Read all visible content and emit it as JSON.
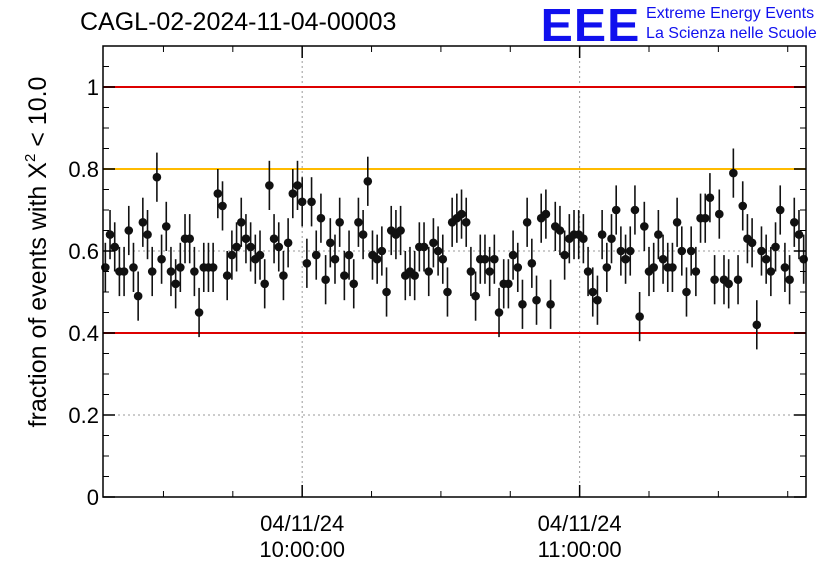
{
  "header": {
    "title": "CAGL-02-2024-11-04-00003",
    "logo_mark": "EEE",
    "logo_line1": "Extreme Energy Events",
    "logo_line2": "La Scienza nelle Scuole"
  },
  "colors": {
    "upper_limit": "#dd0000",
    "lower_limit": "#dd0000",
    "target": "#ffbb00",
    "points": "#111111",
    "logo": "#1010ee"
  },
  "chart_data": {
    "type": "scatter",
    "title": "CAGL-02-2024-11-04-00003",
    "ylabel": "fraction of events with X² < 10.0",
    "ylabel_main": "fraction of events with X",
    "ylabel_sup": "2",
    "ylabel_tail": " < 10.0",
    "xlabel": "",
    "ylim": [
      0,
      1.1
    ],
    "xlim": [
      0,
      150
    ],
    "yticks": [
      0,
      0.2,
      0.4,
      0.6,
      0.8,
      1
    ],
    "ytick_labels": [
      "0",
      "0.2",
      "0.4",
      "0.6",
      "0.8",
      "1"
    ],
    "xticks": [
      {
        "x": 42.5,
        "date": "04/11/24",
        "time": "10:00:00"
      },
      {
        "x": 101.7,
        "date": "04/11/24",
        "time": "11:00:00"
      }
    ],
    "grid": "dotted",
    "reference_lines": [
      {
        "y": 1.0,
        "color": "#dd0000"
      },
      {
        "y": 0.8,
        "color": "#ffbb00"
      },
      {
        "y": 0.4,
        "color": "#dd0000"
      }
    ],
    "error": 0.06,
    "x": [
      0.5,
      1.5,
      2.5,
      3.5,
      4.5,
      5.5,
      6.5,
      7.5,
      8.5,
      9.5,
      10.5,
      11.5,
      12.5,
      13.5,
      14.5,
      15.5,
      16.5,
      17.5,
      18.5,
      19.5,
      20.5,
      21.5,
      22.5,
      23.5,
      24.5,
      25.5,
      26.5,
      27.5,
      28.5,
      29.5,
      30.5,
      31.5,
      32.5,
      33.5,
      34.5,
      35.5,
      36.5,
      37.5,
      38.5,
      39.5,
      40.5,
      41.5,
      42.5,
      43.5,
      44.5,
      45.5,
      46.5,
      47.5,
      48.5,
      49.5,
      50.5,
      51.5,
      52.5,
      53.5,
      54.5,
      55.5,
      56.5,
      57.5,
      58.5,
      59.5,
      60.5,
      61.5,
      62.5,
      63.5,
      64.5,
      65.5,
      66.5,
      67.5,
      68.5,
      69.5,
      70.5,
      71.5,
      72.5,
      73.5,
      74.5,
      75.5,
      76.5,
      77.5,
      78.5,
      79.5,
      80.5,
      81.5,
      82.5,
      83.5,
      84.5,
      85.5,
      86.5,
      87.5,
      88.5,
      89.5,
      90.5,
      91.5,
      92.5,
      93.5,
      94.5,
      95.5,
      96.5,
      97.5,
      98.5,
      99.5,
      100.5,
      101.5,
      102.5,
      103.5,
      104.5,
      105.5,
      106.5,
      107.5,
      108.5,
      109.5,
      110.5,
      111.5,
      112.5,
      113.5,
      114.5,
      115.5,
      116.5,
      117.5,
      118.5,
      119.5,
      120.5,
      121.5,
      122.5,
      123.5,
      124.5,
      125.5,
      126.5,
      127.5,
      128.5,
      129.5,
      130.5,
      131.5,
      132.5,
      133.5,
      134.5,
      135.5,
      136.5,
      137.5,
      138.5,
      139.5,
      140.5,
      141.5,
      142.5,
      143.5,
      144.5,
      145.5,
      146.5,
      147.5,
      148.5,
      149.5
    ],
    "values": [
      0.56,
      0.64,
      0.61,
      0.55,
      0.55,
      0.65,
      0.56,
      0.49,
      0.67,
      0.64,
      0.55,
      0.78,
      0.58,
      0.66,
      0.55,
      0.52,
      0.56,
      0.63,
      0.63,
      0.55,
      0.45,
      0.56,
      0.56,
      0.56,
      0.74,
      0.71,
      0.54,
      0.59,
      0.61,
      0.67,
      0.63,
      0.61,
      0.58,
      0.59,
      0.52,
      0.76,
      0.63,
      0.61,
      0.54,
      0.62,
      0.74,
      0.76,
      0.72,
      0.57,
      0.72,
      0.59,
      0.68,
      0.53,
      0.62,
      0.58,
      0.67,
      0.54,
      0.59,
      0.52,
      0.67,
      0.64,
      0.77,
      0.59,
      0.58,
      0.6,
      0.5,
      0.65,
      0.64,
      0.65,
      0.54,
      0.55,
      0.54,
      0.61,
      0.61,
      0.55,
      0.62,
      0.6,
      0.58,
      0.5,
      0.67,
      0.68,
      0.69,
      0.67,
      0.55,
      0.49,
      0.58,
      0.58,
      0.55,
      0.58,
      0.45,
      0.52,
      0.52,
      0.59,
      0.56,
      0.47,
      0.67,
      0.57,
      0.48,
      0.68,
      0.69,
      0.47,
      0.66,
      0.65,
      0.59,
      0.63,
      0.64,
      0.64,
      0.63,
      0.55,
      0.5,
      0.48,
      0.64,
      0.56,
      0.63,
      0.7,
      0.6,
      0.58,
      0.6,
      0.7,
      0.44,
      0.66,
      0.55,
      0.56,
      0.64,
      0.58,
      0.56,
      0.56,
      0.67,
      0.6,
      0.5,
      0.6,
      0.55,
      0.68,
      0.68,
      0.73,
      0.53,
      0.69,
      0.53,
      0.52,
      0.79,
      0.53,
      0.71,
      0.63,
      0.62,
      0.42,
      0.6,
      0.58,
      0.55,
      0.61,
      0.7,
      0.56,
      0.53,
      0.67,
      0.64,
      0.58
    ]
  }
}
